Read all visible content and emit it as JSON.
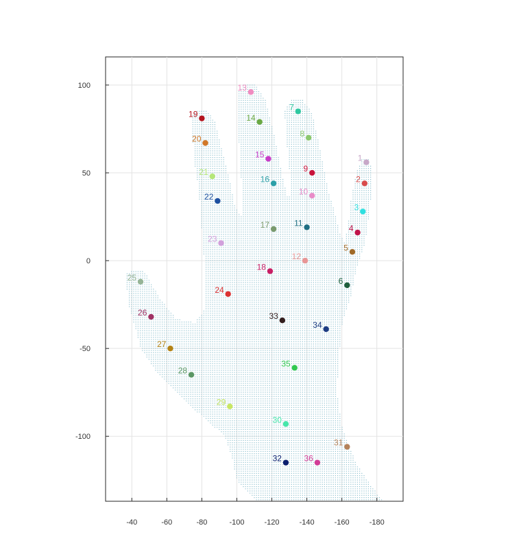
{
  "chart_data": {
    "type": "scatter",
    "title": "",
    "xlabel": "",
    "ylabel": "",
    "x_axis_reversed": true,
    "xlim": [
      -25,
      -195
    ],
    "ylim": [
      -137,
      116
    ],
    "xticks": [
      -40,
      -60,
      -80,
      -100,
      -120,
      -140,
      -160,
      -180
    ],
    "yticks": [
      100,
      50,
      0,
      -50,
      -100
    ],
    "grid": true,
    "background_cloud_color": "#7fb8c8",
    "points": [
      {
        "label": "1",
        "x": -174,
        "y": 56,
        "color": "#c8a8c8"
      },
      {
        "label": "2",
        "x": -173,
        "y": 44,
        "color": "#d94c4c"
      },
      {
        "label": "3",
        "x": -172,
        "y": 28,
        "color": "#2fe0e0"
      },
      {
        "label": "4",
        "x": -169,
        "y": 16,
        "color": "#c0144a"
      },
      {
        "label": "5",
        "x": -166,
        "y": 5,
        "color": "#a06a28"
      },
      {
        "label": "6",
        "x": -163,
        "y": -14,
        "color": "#1e5e3c"
      },
      {
        "label": "7",
        "x": -135,
        "y": 85,
        "color": "#2fc8a0"
      },
      {
        "label": "8",
        "x": -141,
        "y": 70,
        "color": "#8cc86e"
      },
      {
        "label": "9",
        "x": -143,
        "y": 50,
        "color": "#c8143c"
      },
      {
        "label": "10",
        "x": -143,
        "y": 37,
        "color": "#e88cc8"
      },
      {
        "label": "11",
        "x": -140,
        "y": 19,
        "color": "#1e6e82"
      },
      {
        "label": "12",
        "x": -139,
        "y": 0,
        "color": "#e89696"
      },
      {
        "label": "13",
        "x": -108,
        "y": 96,
        "color": "#f08cc0"
      },
      {
        "label": "14",
        "x": -113,
        "y": 79,
        "color": "#6aa844"
      },
      {
        "label": "15",
        "x": -118,
        "y": 58,
        "color": "#c83cc8"
      },
      {
        "label": "16",
        "x": -121,
        "y": 44,
        "color": "#2ea0a8"
      },
      {
        "label": "17",
        "x": -121,
        "y": 18,
        "color": "#7a9a6e"
      },
      {
        "label": "18",
        "x": -119,
        "y": -6,
        "color": "#c81e64"
      },
      {
        "label": "19",
        "x": -80,
        "y": 81,
        "color": "#b4141e"
      },
      {
        "label": "20",
        "x": -82,
        "y": 67,
        "color": "#d27828"
      },
      {
        "label": "21",
        "x": -86,
        "y": 48,
        "color": "#b4e678"
      },
      {
        "label": "22",
        "x": -89,
        "y": 34,
        "color": "#1e50a0"
      },
      {
        "label": "23",
        "x": -91,
        "y": 10,
        "color": "#d2a0dc"
      },
      {
        "label": "24",
        "x": -95,
        "y": -19,
        "color": "#dc3232"
      },
      {
        "label": "25",
        "x": -45,
        "y": -12,
        "color": "#96b496"
      },
      {
        "label": "26",
        "x": -51,
        "y": -32,
        "color": "#a03264"
      },
      {
        "label": "27",
        "x": -62,
        "y": -50,
        "color": "#b48214"
      },
      {
        "label": "28",
        "x": -74,
        "y": -65,
        "color": "#5a9664"
      },
      {
        "label": "29",
        "x": -96,
        "y": -83,
        "color": "#c8e664"
      },
      {
        "label": "30",
        "x": -128,
        "y": -93,
        "color": "#46e6aa"
      },
      {
        "label": "31",
        "x": -163,
        "y": -106,
        "color": "#b4825a"
      },
      {
        "label": "32",
        "x": -128,
        "y": -115,
        "color": "#0a1e6e"
      },
      {
        "label": "33",
        "x": -126,
        "y": -34,
        "color": "#321e1e"
      },
      {
        "label": "34",
        "x": -151,
        "y": -39,
        "color": "#1e3c82"
      },
      {
        "label": "35",
        "x": -133,
        "y": -61,
        "color": "#32c850"
      },
      {
        "label": "36",
        "x": -146,
        "y": -115,
        "color": "#d23c96"
      }
    ]
  }
}
